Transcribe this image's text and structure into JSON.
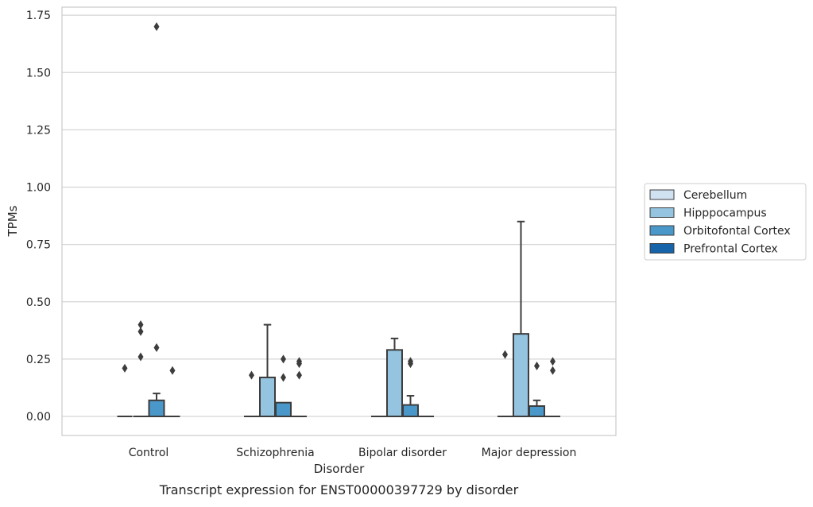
{
  "chart_data": {
    "type": "box",
    "xlabel": "Disorder",
    "ylabel": "TPMs",
    "caption": "Transcript expression for ENST00000397729 by disorder",
    "categories": [
      "Control",
      "Schizophrenia",
      "Bipolar disorder",
      "Major depression"
    ],
    "ylim": [
      -0.08,
      1.78
    ],
    "yticks": [
      0.0,
      0.25,
      0.5,
      0.75,
      1.0,
      1.25,
      1.5,
      1.75
    ],
    "ytick_labels": [
      "0.00",
      "0.25",
      "0.50",
      "0.75",
      "1.00",
      "1.25",
      "1.50",
      "1.75"
    ],
    "grid": "horizontal",
    "legend_position": "right",
    "series": [
      {
        "name": "Cerebellum",
        "color": "#d0e1f2",
        "boxes": [
          {
            "q1": 0,
            "median": 0,
            "q3": 0,
            "whisker_low": 0,
            "whisker_high": 0,
            "outliers": [
              0.21
            ]
          },
          {
            "q1": 0,
            "median": 0,
            "q3": 0,
            "whisker_low": 0,
            "whisker_high": 0,
            "outliers": [
              0.18
            ]
          },
          {
            "q1": 0,
            "median": 0,
            "q3": 0,
            "whisker_low": 0,
            "whisker_high": 0,
            "outliers": []
          },
          {
            "q1": 0,
            "median": 0,
            "q3": 0,
            "whisker_low": 0,
            "whisker_high": 0,
            "outliers": [
              0.27
            ]
          }
        ]
      },
      {
        "name": "Hipppocampus",
        "color": "#94c4df",
        "boxes": [
          {
            "q1": 0,
            "median": 0,
            "q3": 0,
            "whisker_low": 0,
            "whisker_high": 0,
            "outliers": [
              0.4,
              0.37,
              0.26
            ]
          },
          {
            "q1": 0,
            "median": 0,
            "q3": 0.17,
            "whisker_low": 0,
            "whisker_high": 0.4,
            "outliers": []
          },
          {
            "q1": 0,
            "median": 0,
            "q3": 0.29,
            "whisker_low": 0,
            "whisker_high": 0.34,
            "outliers": []
          },
          {
            "q1": 0,
            "median": 0,
            "q3": 0.36,
            "whisker_low": 0,
            "whisker_high": 0.85,
            "outliers": []
          }
        ]
      },
      {
        "name": "Orbitofontal Cortex",
        "color": "#4a98c9",
        "boxes": [
          {
            "q1": 0,
            "median": 0,
            "q3": 0.07,
            "whisker_low": 0,
            "whisker_high": 0.1,
            "outliers": [
              1.7,
              0.3
            ]
          },
          {
            "q1": 0,
            "median": 0,
            "q3": 0.06,
            "whisker_low": 0,
            "whisker_high": 0.06,
            "outliers": [
              0.25,
              0.17
            ]
          },
          {
            "q1": 0,
            "median": 0,
            "q3": 0.05,
            "whisker_low": 0,
            "whisker_high": 0.09,
            "outliers": [
              0.24,
              0.23
            ]
          },
          {
            "q1": 0,
            "median": 0,
            "q3": 0.045,
            "whisker_low": 0,
            "whisker_high": 0.07,
            "outliers": [
              0.22
            ]
          }
        ]
      },
      {
        "name": "Prefrontal Cortex",
        "color": "#1764ab",
        "boxes": [
          {
            "q1": 0,
            "median": 0,
            "q3": 0,
            "whisker_low": 0,
            "whisker_high": 0,
            "outliers": [
              0.2
            ]
          },
          {
            "q1": 0,
            "median": 0,
            "q3": 0,
            "whisker_low": 0,
            "whisker_high": 0,
            "outliers": [
              0.24,
              0.23,
              0.18
            ]
          },
          {
            "q1": 0,
            "median": 0,
            "q3": 0,
            "whisker_low": 0,
            "whisker_high": 0,
            "outliers": []
          },
          {
            "q1": 0,
            "median": 0,
            "q3": 0,
            "whisker_low": 0,
            "whisker_high": 0,
            "outliers": [
              0.24,
              0.2
            ]
          }
        ]
      }
    ]
  }
}
